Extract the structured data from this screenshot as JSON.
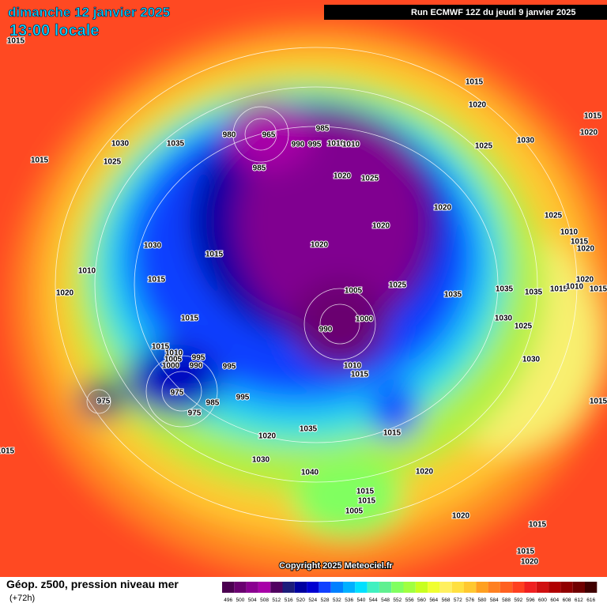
{
  "header": {
    "date": "dimanche 12 janvier 2025",
    "time": "13:00 locale",
    "run": "Run ECMWF 12Z du jeudi 9 janvier 2025"
  },
  "map": {
    "copyright": "Copyright 2025 Meteociel.fr",
    "isobar_labels": [
      1015,
      1030,
      1035,
      1015,
      1025,
      1015,
      1020,
      1015,
      1020,
      1025,
      1030,
      980,
      965,
      985,
      990,
      995,
      1010,
      1010,
      985,
      1020,
      1025,
      1020,
      1020,
      1025,
      1010,
      1015,
      1020,
      1030,
      1015,
      1020,
      1010,
      1015,
      1025,
      1020,
      1035,
      1035,
      1035,
      1015,
      1010,
      1015,
      1020,
      1005,
      1015,
      990,
      1000,
      1030,
      1025,
      1015,
      1010,
      1005,
      1000,
      995,
      990,
      995,
      1010,
      1015,
      1030,
      975,
      995,
      985,
      975,
      975,
      1015,
      1035,
      1015,
      1020,
      1015,
      1030,
      1040,
      1020,
      1015,
      1015,
      1005,
      1020,
      1015,
      1015,
      1020
    ]
  },
  "legend": {
    "title": "Géop. z500, pression niveau mer",
    "lead": "(+72h)",
    "levels": [
      496,
      500,
      504,
      508,
      512,
      516,
      520,
      524,
      528,
      532,
      536,
      540,
      544,
      548,
      552,
      556,
      560,
      564,
      568,
      572,
      576,
      580,
      584,
      588,
      592,
      596,
      600,
      604,
      608,
      612,
      616
    ],
    "colors": [
      "#4b0050",
      "#6a0070",
      "#8a0090",
      "#a800a8",
      "#500060",
      "#1c1c7a",
      "#0000a0",
      "#0000d0",
      "#1040ff",
      "#0080ff",
      "#00b0ff",
      "#00e0ff",
      "#40f0c0",
      "#60f090",
      "#80ff60",
      "#a0ff40",
      "#c8ff20",
      "#f0ff30",
      "#fff060",
      "#ffe040",
      "#ffc830",
      "#ffa020",
      "#ff8020",
      "#ff6020",
      "#ff4020",
      "#f02020",
      "#d01010",
      "#b00000",
      "#900000",
      "#700000",
      "#400000"
    ]
  }
}
